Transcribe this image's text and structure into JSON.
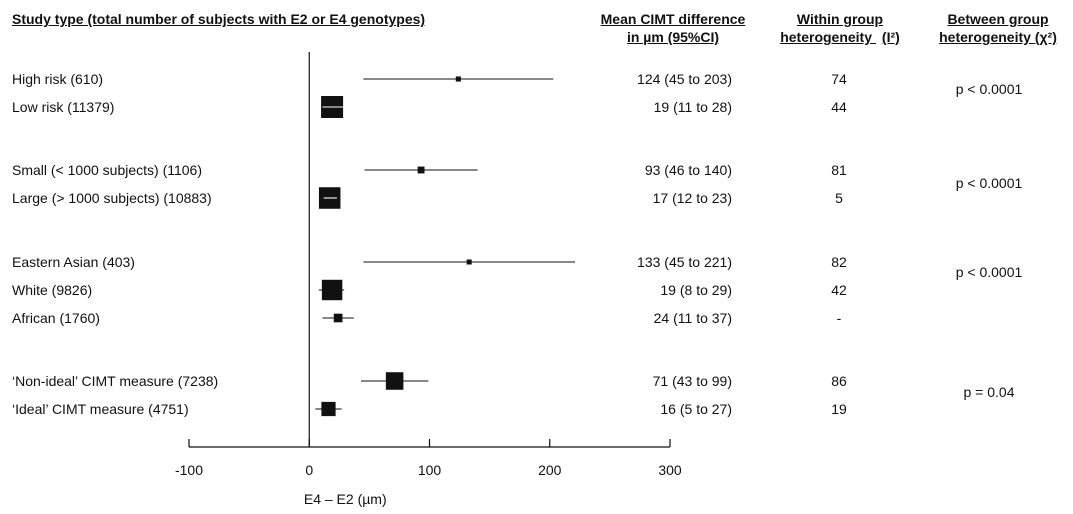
{
  "headers": {
    "study_type": "Study type (total number of subjects with E2 or E4 genotypes)",
    "mean_line1": "Mean CIMT difference",
    "mean_line2": "in µm (95%CI)",
    "within_line1": "Within group",
    "within_line2": "heterogeneity",
    "within_symbol": "(I²)",
    "between_line1": "Between group",
    "between_line2": "heterogeneity (χ²)"
  },
  "x_axis_label": "E4 – E2 (µm)",
  "p_values": [
    {
      "text": "p < 0.0001"
    },
    {
      "text": "p < 0.0001"
    },
    {
      "text": "p < 0.0001"
    },
    {
      "text": "p = 0.04"
    }
  ],
  "rows": [
    {
      "label": "High risk (610)",
      "estimate_text": "124 (45 to 203)",
      "i2": "74"
    },
    {
      "label": "Low risk (11379)",
      "estimate_text": "19 (11 to 28)",
      "i2": "44"
    },
    {
      "label": "Small (< 1000 subjects) (1106)",
      "estimate_text": "93 (46 to 140)",
      "i2": "81"
    },
    {
      "label": "Large (> 1000 subjects) (10883)",
      "estimate_text": "17 (12 to 23)",
      "i2": "5"
    },
    {
      "label": "Eastern Asian (403)",
      "estimate_text": "133 (45 to 221)",
      "i2": "82"
    },
    {
      "label": "White (9826)",
      "estimate_text": "19 (8 to 29)",
      "i2": "42"
    },
    {
      "label": "African (1760)",
      "estimate_text": "24 (11 to 37)",
      "i2": "-"
    },
    {
      "label": "‘Non-ideal’ CIMT measure (7238)",
      "estimate_text": "71 (43 to 99)",
      "i2": "86"
    },
    {
      "label": "‘Ideal’ CIMT measure (4751)",
      "estimate_text": "16 (5 to 27)",
      "i2": "19"
    }
  ],
  "chart_data": {
    "type": "forest",
    "xlabel": "E4 – E2 (µm)",
    "xlim": [
      -100,
      300
    ],
    "x_ticks": [
      -100,
      0,
      100,
      200,
      300
    ],
    "reference_line": 0,
    "points": [
      {
        "name": "High risk (610)",
        "estimate": 124,
        "ci_low": 45,
        "ci_high": 203,
        "n": 610
      },
      {
        "name": "Low risk (11379)",
        "estimate": 19,
        "ci_low": 11,
        "ci_high": 28,
        "n": 11379
      },
      {
        "name": "Small (< 1000 subjects) (1106)",
        "estimate": 93,
        "ci_low": 46,
        "ci_high": 140,
        "n": 1106
      },
      {
        "name": "Large (> 1000 subjects) (10883)",
        "estimate": 17,
        "ci_low": 12,
        "ci_high": 23,
        "n": 10883
      },
      {
        "name": "Eastern Asian (403)",
        "estimate": 133,
        "ci_low": 45,
        "ci_high": 221,
        "n": 403
      },
      {
        "name": "White (9826)",
        "estimate": 19,
        "ci_low": 8,
        "ci_high": 29,
        "n": 9826
      },
      {
        "name": "African (1760)",
        "estimate": 24,
        "ci_low": 11,
        "ci_high": 37,
        "n": 1760
      },
      {
        "name": "‘Non-ideal’ CIMT measure (7238)",
        "estimate": 71,
        "ci_low": 43,
        "ci_high": 99,
        "n": 7238
      },
      {
        "name": "‘Ideal’ CIMT measure (4751)",
        "estimate": 16,
        "ci_low": 5,
        "ci_high": 27,
        "n": 4751
      }
    ]
  }
}
